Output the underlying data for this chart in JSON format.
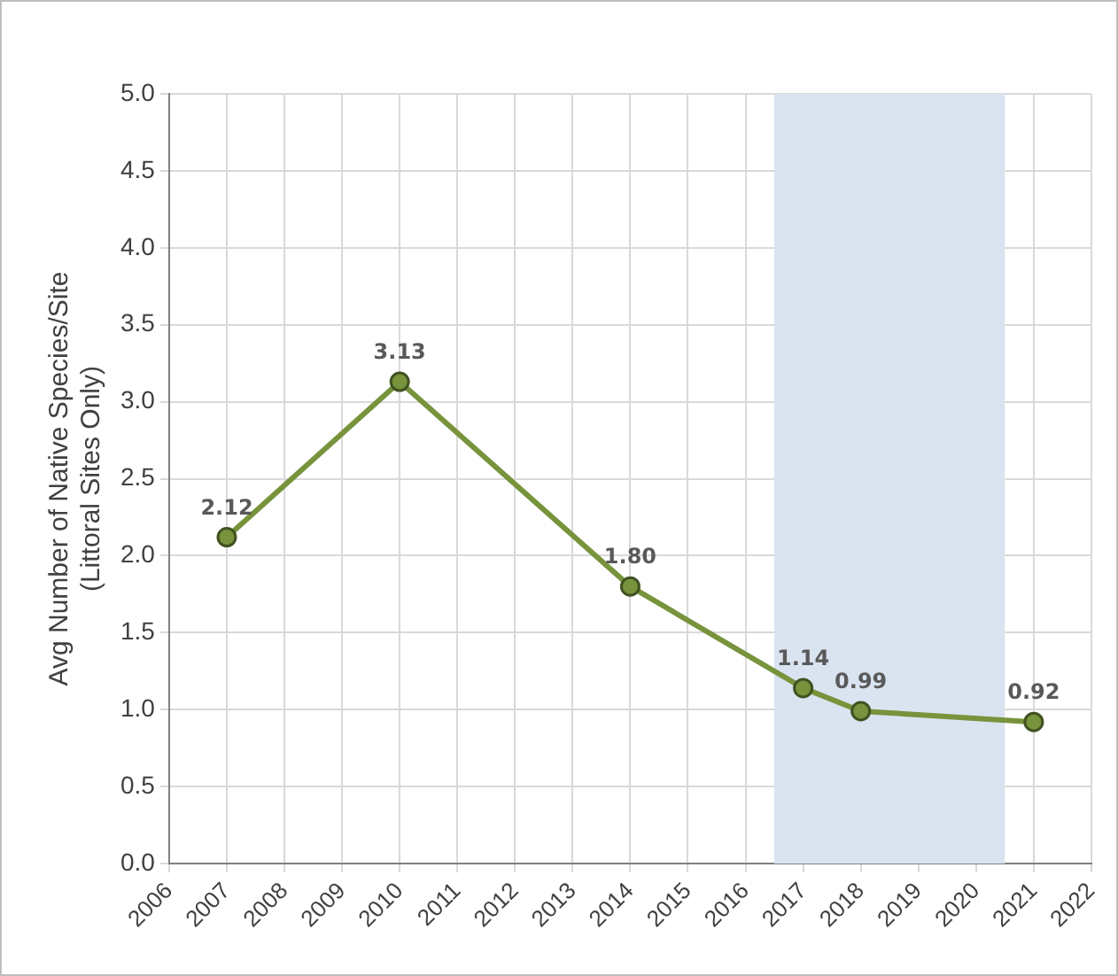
{
  "chart_data": {
    "type": "line",
    "ylabel": "Avg Number of Native Species/Site\n(Littoral Sites Only)",
    "x": [
      2007,
      2010,
      2014,
      2017,
      2018,
      2021
    ],
    "series": [
      {
        "color": "#77933c",
        "values": [
          2.12,
          3.13,
          1.8,
          1.14,
          0.99,
          0.92
        ],
        "value_labels": [
          "2.12",
          "3.13",
          "1.80",
          "1.14",
          "0.99",
          "0.92"
        ]
      }
    ],
    "xlim": [
      2006,
      2022
    ],
    "xticks": [
      2006,
      2007,
      2008,
      2009,
      2010,
      2011,
      2012,
      2013,
      2014,
      2015,
      2016,
      2017,
      2018,
      2019,
      2020,
      2021,
      2022
    ],
    "ylim": [
      0,
      5
    ],
    "yticks": [
      {
        "value": 0,
        "label": "0.0"
      },
      {
        "value": 0.5,
        "label": "0.5"
      },
      {
        "value": 1,
        "label": "1.0"
      },
      {
        "value": 1.5,
        "label": "1.5"
      },
      {
        "value": 2,
        "label": "2.0"
      },
      {
        "value": 2.5,
        "label": "2.5"
      },
      {
        "value": 3,
        "label": "3.0"
      },
      {
        "value": 3.5,
        "label": "3.5"
      },
      {
        "value": 4,
        "label": "4.0"
      },
      {
        "value": 4.5,
        "label": "4.5"
      },
      {
        "value": 5,
        "label": "5.0"
      }
    ],
    "bands": [
      {
        "axis": "x",
        "from": 2016.5,
        "to": 2020.5,
        "color": "#dae3f0"
      }
    ],
    "grid": true,
    "legend": false,
    "marker": "circle",
    "line_style": "solid"
  }
}
